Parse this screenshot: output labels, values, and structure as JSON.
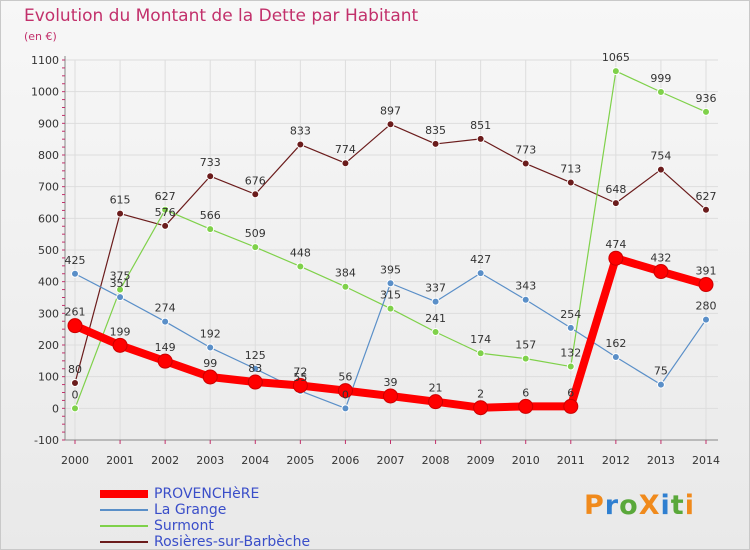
{
  "header": {
    "title": "Evolution du Montant de la Dette par Habitant",
    "unit": "(en €)"
  },
  "colors": {
    "title": "#c2306b",
    "axis_text": "#333333",
    "grid": "#dddddd",
    "tick_marks": "#c2306b",
    "legend_text": "#3a4ec9"
  },
  "logo": {
    "text": "ProXiti",
    "letters": [
      "P",
      "r",
      "o",
      "X",
      "i",
      "t",
      "i"
    ]
  },
  "chart_data": {
    "type": "line",
    "title": "Evolution du Montant de la Dette par Habitant",
    "ylabel": "(en €)",
    "xlabel": "",
    "ylim": [
      -100,
      1100
    ],
    "yticks": [
      -100,
      0,
      100,
      200,
      300,
      400,
      500,
      600,
      700,
      800,
      900,
      1000,
      1100
    ],
    "grid": true,
    "legend_position": "bottom-left",
    "categories": [
      "2000",
      "2001",
      "2002",
      "2003",
      "2004",
      "2005",
      "2006",
      "2007",
      "2008",
      "2009",
      "2010",
      "2011",
      "2012",
      "2013",
      "2014"
    ],
    "series": [
      {
        "name": "PROVENCHèRE",
        "color": "#ff0000",
        "width": 8,
        "values": [
          261,
          199,
          149,
          99,
          83,
          72,
          56,
          39,
          21,
          2,
          6,
          6,
          474,
          432,
          391
        ]
      },
      {
        "name": "La Grange",
        "color": "#5a8fc8",
        "width": 1.2,
        "values": [
          425,
          351,
          274,
          192,
          125,
          55,
          0,
          395,
          337,
          427,
          343,
          254,
          162,
          75,
          280
        ]
      },
      {
        "name": "Surmont",
        "color": "#7fd14a",
        "width": 1.2,
        "values": [
          0,
          375,
          627,
          566,
          509,
          448,
          384,
          315,
          241,
          174,
          157,
          132,
          1065,
          999,
          936
        ]
      },
      {
        "name": "Rosières-sur-Barbèche",
        "color": "#6b1c1c",
        "width": 1.2,
        "values": [
          80,
          615,
          576,
          733,
          676,
          833,
          774,
          897,
          835,
          851,
          773,
          713,
          648,
          754,
          627
        ]
      }
    ]
  }
}
